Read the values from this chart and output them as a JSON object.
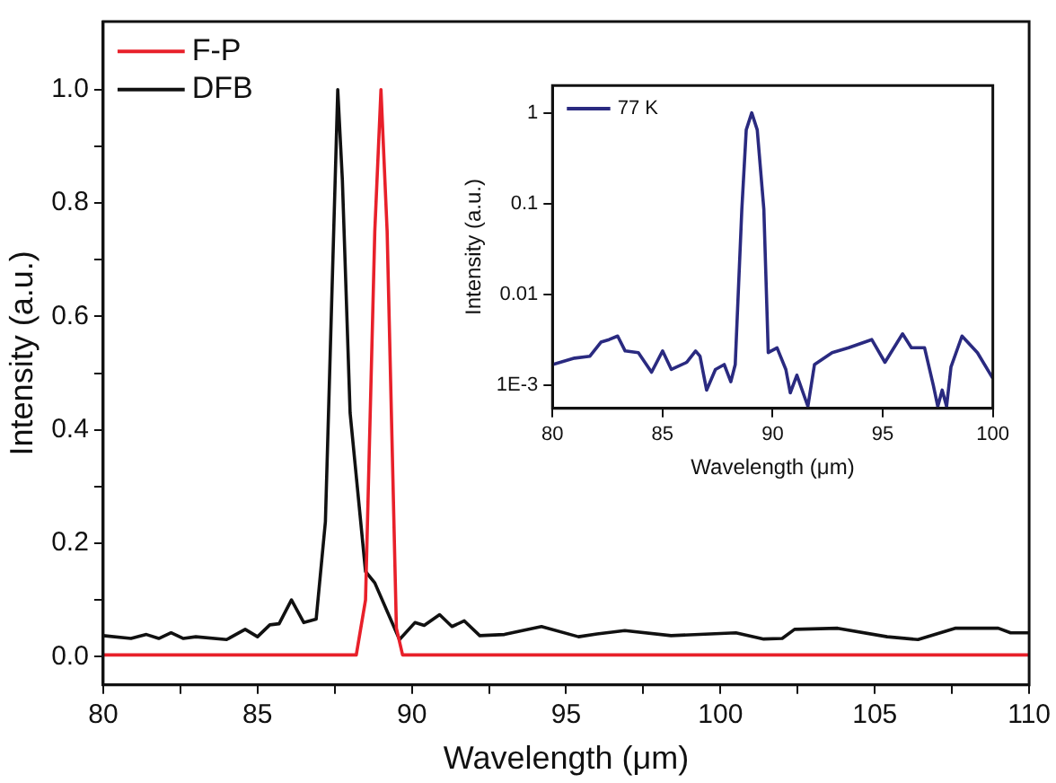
{
  "chart_data": [
    {
      "type": "line",
      "xlabel": "Wavelength (μm)",
      "ylabel": "Intensity (a.u.)",
      "xlim": [
        80,
        110
      ],
      "ylim": [
        -0.05,
        1.12
      ],
      "xticks": [
        80,
        {
          "value": 82.5,
          "label": null
        },
        85,
        {
          "value": 87.5,
          "label": null
        },
        90,
        {
          "value": 92.5,
          "label": null
        },
        95,
        {
          "value": 97.5,
          "label": null
        },
        100,
        {
          "value": 102.5,
          "label": null
        },
        105,
        {
          "value": 107.5,
          "label": null
        },
        110
      ],
      "yticks": [
        {
          "value": 0,
          "label": "0.0"
        },
        {
          "value": 0.1,
          "label": null
        },
        {
          "value": 0.2,
          "label": "0.2"
        },
        {
          "value": 0.3,
          "label": null
        },
        {
          "value": 0.4,
          "label": "0.4"
        },
        {
          "value": 0.5,
          "label": null
        },
        {
          "value": 0.6,
          "label": "0.6"
        },
        {
          "value": 0.7,
          "label": null
        },
        {
          "value": 0.8,
          "label": "0.8"
        },
        {
          "value": 0.9,
          "label": null
        },
        {
          "value": 1.0,
          "label": "1.0"
        }
      ],
      "legend": "top left",
      "marker": "none",
      "line_style": "solid",
      "series": [
        {
          "name": "F-P",
          "color": "#e8202a",
          "x": [
            80,
            85,
            88.2,
            88.5,
            88.8,
            89.0,
            89.2,
            89.5,
            89.7,
            95,
            100,
            110
          ],
          "values": [
            0.003,
            0.003,
            0.003,
            0.1,
            0.75,
            1.0,
            0.75,
            0.05,
            0.003,
            0.003,
            0.003,
            0.003
          ]
        },
        {
          "name": "DFB",
          "color": "#111111",
          "x": [
            80,
            80.9,
            81.4,
            81.8,
            82.2,
            82.6,
            83.0,
            84.0,
            84.6,
            85.0,
            85.4,
            85.7,
            86.1,
            86.5,
            86.9,
            87.2,
            87.6,
            87.75,
            88.0,
            88.5,
            88.8,
            89.2,
            89.6,
            90.1,
            90.4,
            90.9,
            91.3,
            91.7,
            92.2,
            93.0,
            94.2,
            95.4,
            96.0,
            96.9,
            98.4,
            100.5,
            101.4,
            102.0,
            102.4,
            103.8,
            105.4,
            106.4,
            107.6,
            109.0,
            109.4,
            110
          ],
          "values": [
            0.037,
            0.032,
            0.039,
            0.032,
            0.042,
            0.032,
            0.035,
            0.03,
            0.048,
            0.035,
            0.056,
            0.058,
            0.1,
            0.06,
            0.066,
            0.238,
            1.0,
            0.84,
            0.43,
            0.15,
            0.13,
            0.08,
            0.03,
            0.06,
            0.055,
            0.074,
            0.053,
            0.063,
            0.037,
            0.039,
            0.053,
            0.035,
            0.04,
            0.046,
            0.037,
            0.042,
            0.031,
            0.032,
            0.048,
            0.05,
            0.035,
            0.03,
            0.05,
            0.05,
            0.042,
            0.042
          ]
        }
      ]
    },
    {
      "type": "line",
      "xlabel": "Wavelength (μm)",
      "ylabel": "Intensity (a.u.)",
      "xlim": [
        80,
        100
      ],
      "ylim": [
        0.00056,
        2
      ],
      "log": true,
      "xticks": [
        80,
        85,
        90,
        95,
        100
      ],
      "yticks": [
        {
          "value": 0.001,
          "label": "1E-3"
        },
        0.01,
        0.1,
        1
      ],
      "legend": "top left",
      "marker": "none",
      "line_style": "solid",
      "series": [
        {
          "name": "77 K",
          "color": "#2a2a80",
          "x": [
            80,
            81.0,
            81.7,
            82.2,
            82.57,
            82.96,
            83.3,
            83.9,
            84.5,
            85.0,
            85.4,
            86.1,
            86.5,
            86.7,
            87.0,
            87.4,
            87.8,
            88.1,
            88.3,
            88.6,
            88.8,
            89.05,
            89.3,
            89.6,
            89.8,
            90.2,
            90.6,
            90.8,
            91.1,
            91.6,
            91.9,
            92.7,
            93.45,
            94.5,
            95.1,
            95.9,
            96.3,
            96.9,
            97.3,
            97.5,
            97.7,
            97.9,
            98.1,
            98.6,
            99.3,
            100
          ],
          "values": [
            0.0017,
            0.002,
            0.0021,
            0.003,
            0.0032,
            0.0035,
            0.0024,
            0.0023,
            0.0014,
            0.0024,
            0.0015,
            0.0018,
            0.0024,
            0.0021,
            0.00089,
            0.0015,
            0.0017,
            0.0011,
            0.0017,
            0.087,
            0.65,
            1,
            0.65,
            0.087,
            0.0023,
            0.0026,
            0.0015,
            0.00083,
            0.0013,
            0.00059,
            0.0017,
            0.0023,
            0.0026,
            0.0032,
            0.0018,
            0.0037,
            0.0026,
            0.0026,
            0.001,
            0.00059,
            0.00089,
            0.00059,
            0.0016,
            0.0035,
            0.0023,
            0.0012
          ]
        }
      ]
    }
  ]
}
